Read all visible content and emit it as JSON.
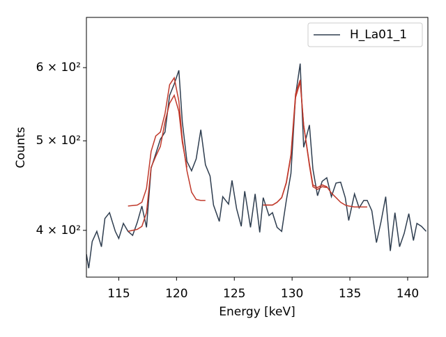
{
  "chart_data": {
    "type": "line",
    "xlabel": "Energy [keV]",
    "ylabel": "Counts",
    "yscale": "log",
    "xlim": [
      112.2,
      141.75
    ],
    "ylim": [
      356,
      680
    ],
    "xticks": [
      115,
      120,
      125,
      130,
      135,
      140
    ],
    "yticks": [
      {
        "value": 400,
        "label": "4 × 10²"
      },
      {
        "value": 500,
        "label": "5 × 10²"
      },
      {
        "value": 600,
        "label": "6 × 10²"
      }
    ],
    "legend": "upper right",
    "series": [
      {
        "name": "H_La01_1",
        "color": "#2e3d4f",
        "x": [
          112.2,
          112.4,
          112.7,
          113.1,
          113.5,
          113.8,
          114.2,
          114.7,
          115.0,
          115.4,
          115.8,
          116.2,
          116.6,
          117.0,
          117.4,
          117.8,
          118.2,
          118.6,
          119.0,
          119.4,
          119.8,
          120.2,
          120.5,
          120.9,
          121.3,
          121.7,
          122.1,
          122.5,
          122.9,
          123.2,
          123.7,
          124.0,
          124.5,
          124.8,
          125.2,
          125.6,
          125.9,
          126.4,
          126.8,
          127.2,
          127.5,
          128.0,
          128.3,
          128.7,
          129.1,
          129.5,
          129.9,
          130.3,
          130.7,
          131.0,
          131.5,
          131.8,
          132.2,
          132.6,
          133.0,
          133.4,
          133.8,
          134.2,
          134.6,
          134.9,
          135.4,
          135.8,
          136.2,
          136.5,
          136.9,
          137.3,
          137.7,
          138.1,
          138.5,
          138.9,
          139.3,
          139.7,
          140.1,
          140.5,
          140.8,
          141.2,
          141.6
        ],
        "values": [
          377,
          364,
          389,
          399,
          384,
          412,
          418,
          399,
          392,
          407,
          399,
          395,
          408,
          425,
          403,
          467,
          484,
          502,
          511,
          560,
          576,
          596,
          524,
          475,
          464,
          478,
          514,
          471,
          458,
          426,
          409,
          435,
          427,
          453,
          422,
          404,
          441,
          403,
          438,
          398,
          434,
          415,
          418,
          403,
          399,
          431,
          461,
          560,
          606,
          492,
          520,
          466,
          436,
          452,
          456,
          435,
          450,
          451,
          434,
          410,
          438,
          423,
          431,
          431,
          420,
          388,
          409,
          435,
          380,
          418,
          384,
          397,
          417,
          390,
          407,
          404,
          399
        ]
      },
      {
        "color": "#c0392b",
        "x": [
          115.8,
          116.6,
          117.0,
          117.4,
          117.8,
          118.2,
          118.6,
          119.0,
          119.4,
          119.8,
          120.2,
          120.5,
          120.9,
          121.3,
          121.7,
          122.1,
          122.5
        ],
        "values": [
          425,
          426,
          429,
          444,
          487,
          506,
          511,
          535,
          575,
          585,
          552,
          502,
          464,
          440,
          432,
          431,
          431
        ]
      },
      {
        "color": "#c0392b",
        "x": [
          115.8,
          116.6,
          117.0,
          117.4,
          117.8,
          118.2,
          118.6,
          119.0,
          119.4,
          119.8,
          120.2,
          120.5,
          120.9
        ],
        "values": [
          399,
          401,
          404,
          418,
          468,
          481,
          493,
          524,
          549,
          560,
          538,
          498,
          468
        ]
      },
      {
        "color": "#c0392b",
        "x": [
          127.5,
          128.3,
          128.7,
          129.1,
          129.5,
          129.9,
          130.3,
          130.7,
          131.0,
          131.5,
          131.8,
          132.2,
          132.6,
          133.0,
          133.4,
          133.8,
          134.2,
          134.6,
          134.9,
          135.4,
          136.5
        ],
        "values": [
          426,
          426,
          429,
          434,
          451,
          483,
          562,
          582,
          520,
          472,
          448,
          445,
          448,
          446,
          439,
          434,
          429,
          426,
          425,
          424,
          424
        ]
      },
      {
        "color": "#c0392b",
        "x": [
          127.5,
          128.3,
          128.7,
          129.1,
          129.5,
          129.9,
          130.3,
          130.7,
          131.0,
          131.5,
          131.8,
          132.2,
          132.6,
          133.0
        ],
        "values": [
          426,
          426,
          429,
          434,
          450,
          481,
          557,
          579,
          520,
          470,
          446,
          443,
          446,
          445
        ]
      }
    ]
  }
}
